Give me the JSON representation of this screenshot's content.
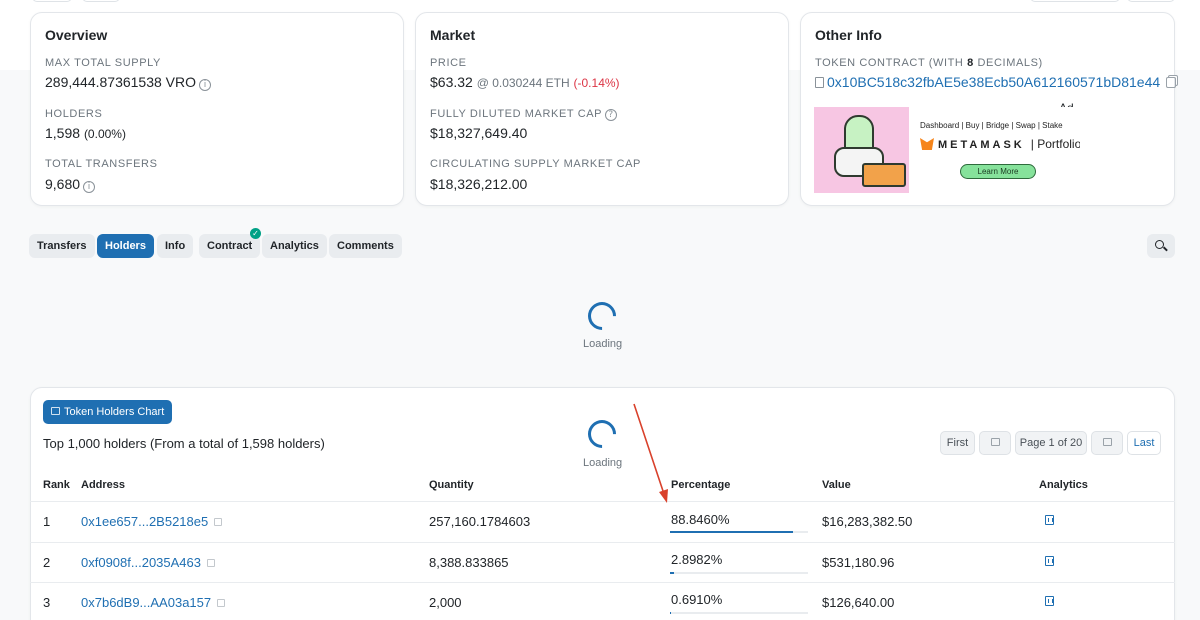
{
  "overview": {
    "title": "Overview",
    "max_supply_label": "MAX TOTAL SUPPLY",
    "max_supply_value": "289,444.87361538 VRO",
    "holders_label": "HOLDERS",
    "holders_value": "1,598",
    "holders_change": "(0.00%)",
    "transfers_label": "TOTAL TRANSFERS",
    "transfers_value": "9,680"
  },
  "market": {
    "title": "Market",
    "price_label": "PRICE",
    "price_value": "$63.32",
    "price_eth": "@ 0.030244 ETH",
    "price_change": "(-0.14%)",
    "fdmc_label": "FULLY DILUTED MARKET CAP",
    "fdmc_value": "$18,327,649.40",
    "csmc_label": "CIRCULATING SUPPLY MARKET CAP",
    "csmc_value": "$18,326,212.00"
  },
  "other_info": {
    "title": "Other Info",
    "contract_label_pre": "TOKEN CONTRACT (WITH",
    "contract_decimals": "8",
    "contract_label_post": "DECIMALS)",
    "contract_address": "0x10BC518c32fbAE5e38Ecb50A612160571bD81e44",
    "ad_label": "Ad",
    "ad_menu": "Dashboard | Buy | Bridge | Swap | Stake",
    "ad_brand": "METAMASK",
    "ad_portfolio": "| Portfolio",
    "ad_button": "Learn More"
  },
  "tabs": [
    {
      "label": "Transfers",
      "active": false
    },
    {
      "label": "Holders",
      "active": true
    },
    {
      "label": "Info",
      "active": false
    },
    {
      "label": "Contract",
      "active": false
    },
    {
      "label": "Analytics",
      "active": false
    },
    {
      "label": "Comments",
      "active": false
    }
  ],
  "loading_text": "Loading",
  "holders": {
    "chart_button": "Token Holders Chart",
    "summary": "Top 1,000 holders (From a total of 1,598 holders)",
    "pager": {
      "first": "First",
      "page": "Page 1 of 20",
      "last": "Last"
    },
    "columns": [
      "Rank",
      "Address",
      "Quantity",
      "Percentage",
      "Value",
      "Analytics"
    ],
    "rows": [
      {
        "rank": "1",
        "address": "0x1ee657...2B5218e5",
        "quantity": "257,160.1784603",
        "percentage": "88.8460%",
        "pct": 88.846,
        "value": "$16,283,382.50"
      },
      {
        "rank": "2",
        "address": "0xf0908f...2035A463",
        "quantity": "8,388.833865",
        "percentage": "2.8982%",
        "pct": 2.8982,
        "value": "$531,180.96"
      },
      {
        "rank": "3",
        "address": "0x7b6dB9...AA03a157",
        "quantity": "2,000",
        "percentage": "0.6910%",
        "pct": 0.691,
        "value": "$126,640.00"
      }
    ]
  },
  "colors": {
    "accent": "#1f6fb2",
    "negative": "#dc3545",
    "verified": "#00a186",
    "annotation_arrow": "#d9412b"
  }
}
